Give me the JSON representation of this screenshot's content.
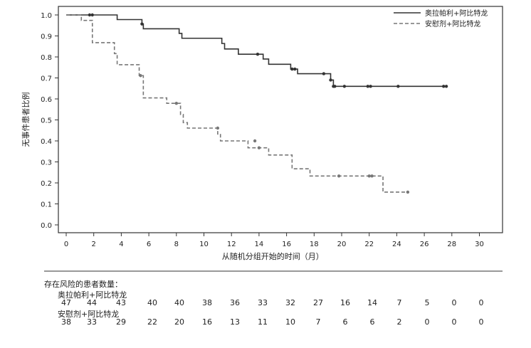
{
  "chart_data": {
    "type": "line",
    "xlabel": "从随机分组开始的时间（月）",
    "ylabel": "无事件患者比例",
    "xlim": [
      0,
      30
    ],
    "ylim": [
      0,
      1.0
    ],
    "x_ticks": [
      "0",
      "2",
      "4",
      "6",
      "8",
      "10",
      "12",
      "14",
      "16",
      "18",
      "20",
      "22",
      "24",
      "26",
      "28",
      "30"
    ],
    "y_ticks": [
      "0.0",
      "0.1",
      "0.2",
      "0.3",
      "0.4",
      "0.5",
      "0.6",
      "0.7",
      "0.8",
      "0.9",
      "1.0"
    ],
    "legend_position": "top-right",
    "grid": false,
    "series": [
      {
        "name": "奥拉帕利+阿比特龙",
        "style": "solid",
        "color": "#333333",
        "steps": [
          [
            0,
            1.0
          ],
          [
            3.7,
            0.978
          ],
          [
            5.5,
            0.957
          ],
          [
            5.6,
            0.934
          ],
          [
            8.2,
            0.912
          ],
          [
            8.4,
            0.889
          ],
          [
            11.3,
            0.864
          ],
          [
            11.5,
            0.838
          ],
          [
            12.5,
            0.813
          ],
          [
            14.3,
            0.79
          ],
          [
            14.7,
            0.765
          ],
          [
            16.3,
            0.742
          ],
          [
            16.8,
            0.72
          ],
          [
            19.0,
            0.72
          ],
          [
            19.2,
            0.69
          ],
          [
            19.4,
            0.66
          ],
          [
            27.7,
            0.66
          ]
        ],
        "censored": [
          [
            1.7,
            1.0
          ],
          [
            1.9,
            1.0
          ],
          [
            5.5,
            0.957
          ],
          [
            13.9,
            0.813
          ],
          [
            16.4,
            0.742
          ],
          [
            16.6,
            0.742
          ],
          [
            18.7,
            0.72
          ],
          [
            19.2,
            0.69
          ],
          [
            19.4,
            0.66
          ],
          [
            19.5,
            0.66
          ],
          [
            20.2,
            0.66
          ],
          [
            21.9,
            0.66
          ],
          [
            22.1,
            0.66
          ],
          [
            24.1,
            0.66
          ],
          [
            27.4,
            0.66
          ],
          [
            27.6,
            0.66
          ]
        ]
      },
      {
        "name": "安慰剂+阿比特龙",
        "style": "dashed",
        "color": "#777777",
        "steps": [
          [
            0,
            1.0
          ],
          [
            1.1,
            0.974
          ],
          [
            1.9,
            0.868
          ],
          [
            3.5,
            0.816
          ],
          [
            3.7,
            0.763
          ],
          [
            5.3,
            0.711
          ],
          [
            5.6,
            0.605
          ],
          [
            7.3,
            0.579
          ],
          [
            8.3,
            0.526
          ],
          [
            8.5,
            0.487
          ],
          [
            8.8,
            0.461
          ],
          [
            11.0,
            0.433
          ],
          [
            11.2,
            0.4
          ],
          [
            13.2,
            0.367
          ],
          [
            14.2,
            0.367
          ],
          [
            14.7,
            0.333
          ],
          [
            16.4,
            0.267
          ],
          [
            17.7,
            0.233
          ],
          [
            23.0,
            0.156
          ],
          [
            24.8,
            0.156
          ]
        ],
        "censored": [
          [
            5.4,
            0.711
          ],
          [
            8.0,
            0.579
          ],
          [
            11.0,
            0.461
          ],
          [
            13.7,
            0.4
          ],
          [
            14.0,
            0.367
          ],
          [
            19.8,
            0.233
          ],
          [
            22.0,
            0.233
          ],
          [
            22.2,
            0.233
          ],
          [
            24.8,
            0.156
          ]
        ]
      }
    ],
    "risk_table": {
      "title": "存在风险的患者数量：",
      "time_points": [
        0,
        2,
        4,
        6,
        8,
        10,
        12,
        14,
        16,
        18,
        20,
        22,
        24,
        26,
        28,
        30
      ],
      "rows": [
        {
          "label": "奥拉帕利+阿比特龙",
          "values": [
            "47",
            "44",
            "43",
            "40",
            "40",
            "38",
            "36",
            "33",
            "32",
            "27",
            "16",
            "14",
            "7",
            "5",
            "0",
            "0"
          ]
        },
        {
          "label": "安慰剂+阿比特龙",
          "values": [
            "38",
            "33",
            "29",
            "22",
            "20",
            "16",
            "13",
            "11",
            "10",
            "7",
            "6",
            "6",
            "2",
            "0",
            "0",
            "0"
          ]
        }
      ]
    }
  }
}
